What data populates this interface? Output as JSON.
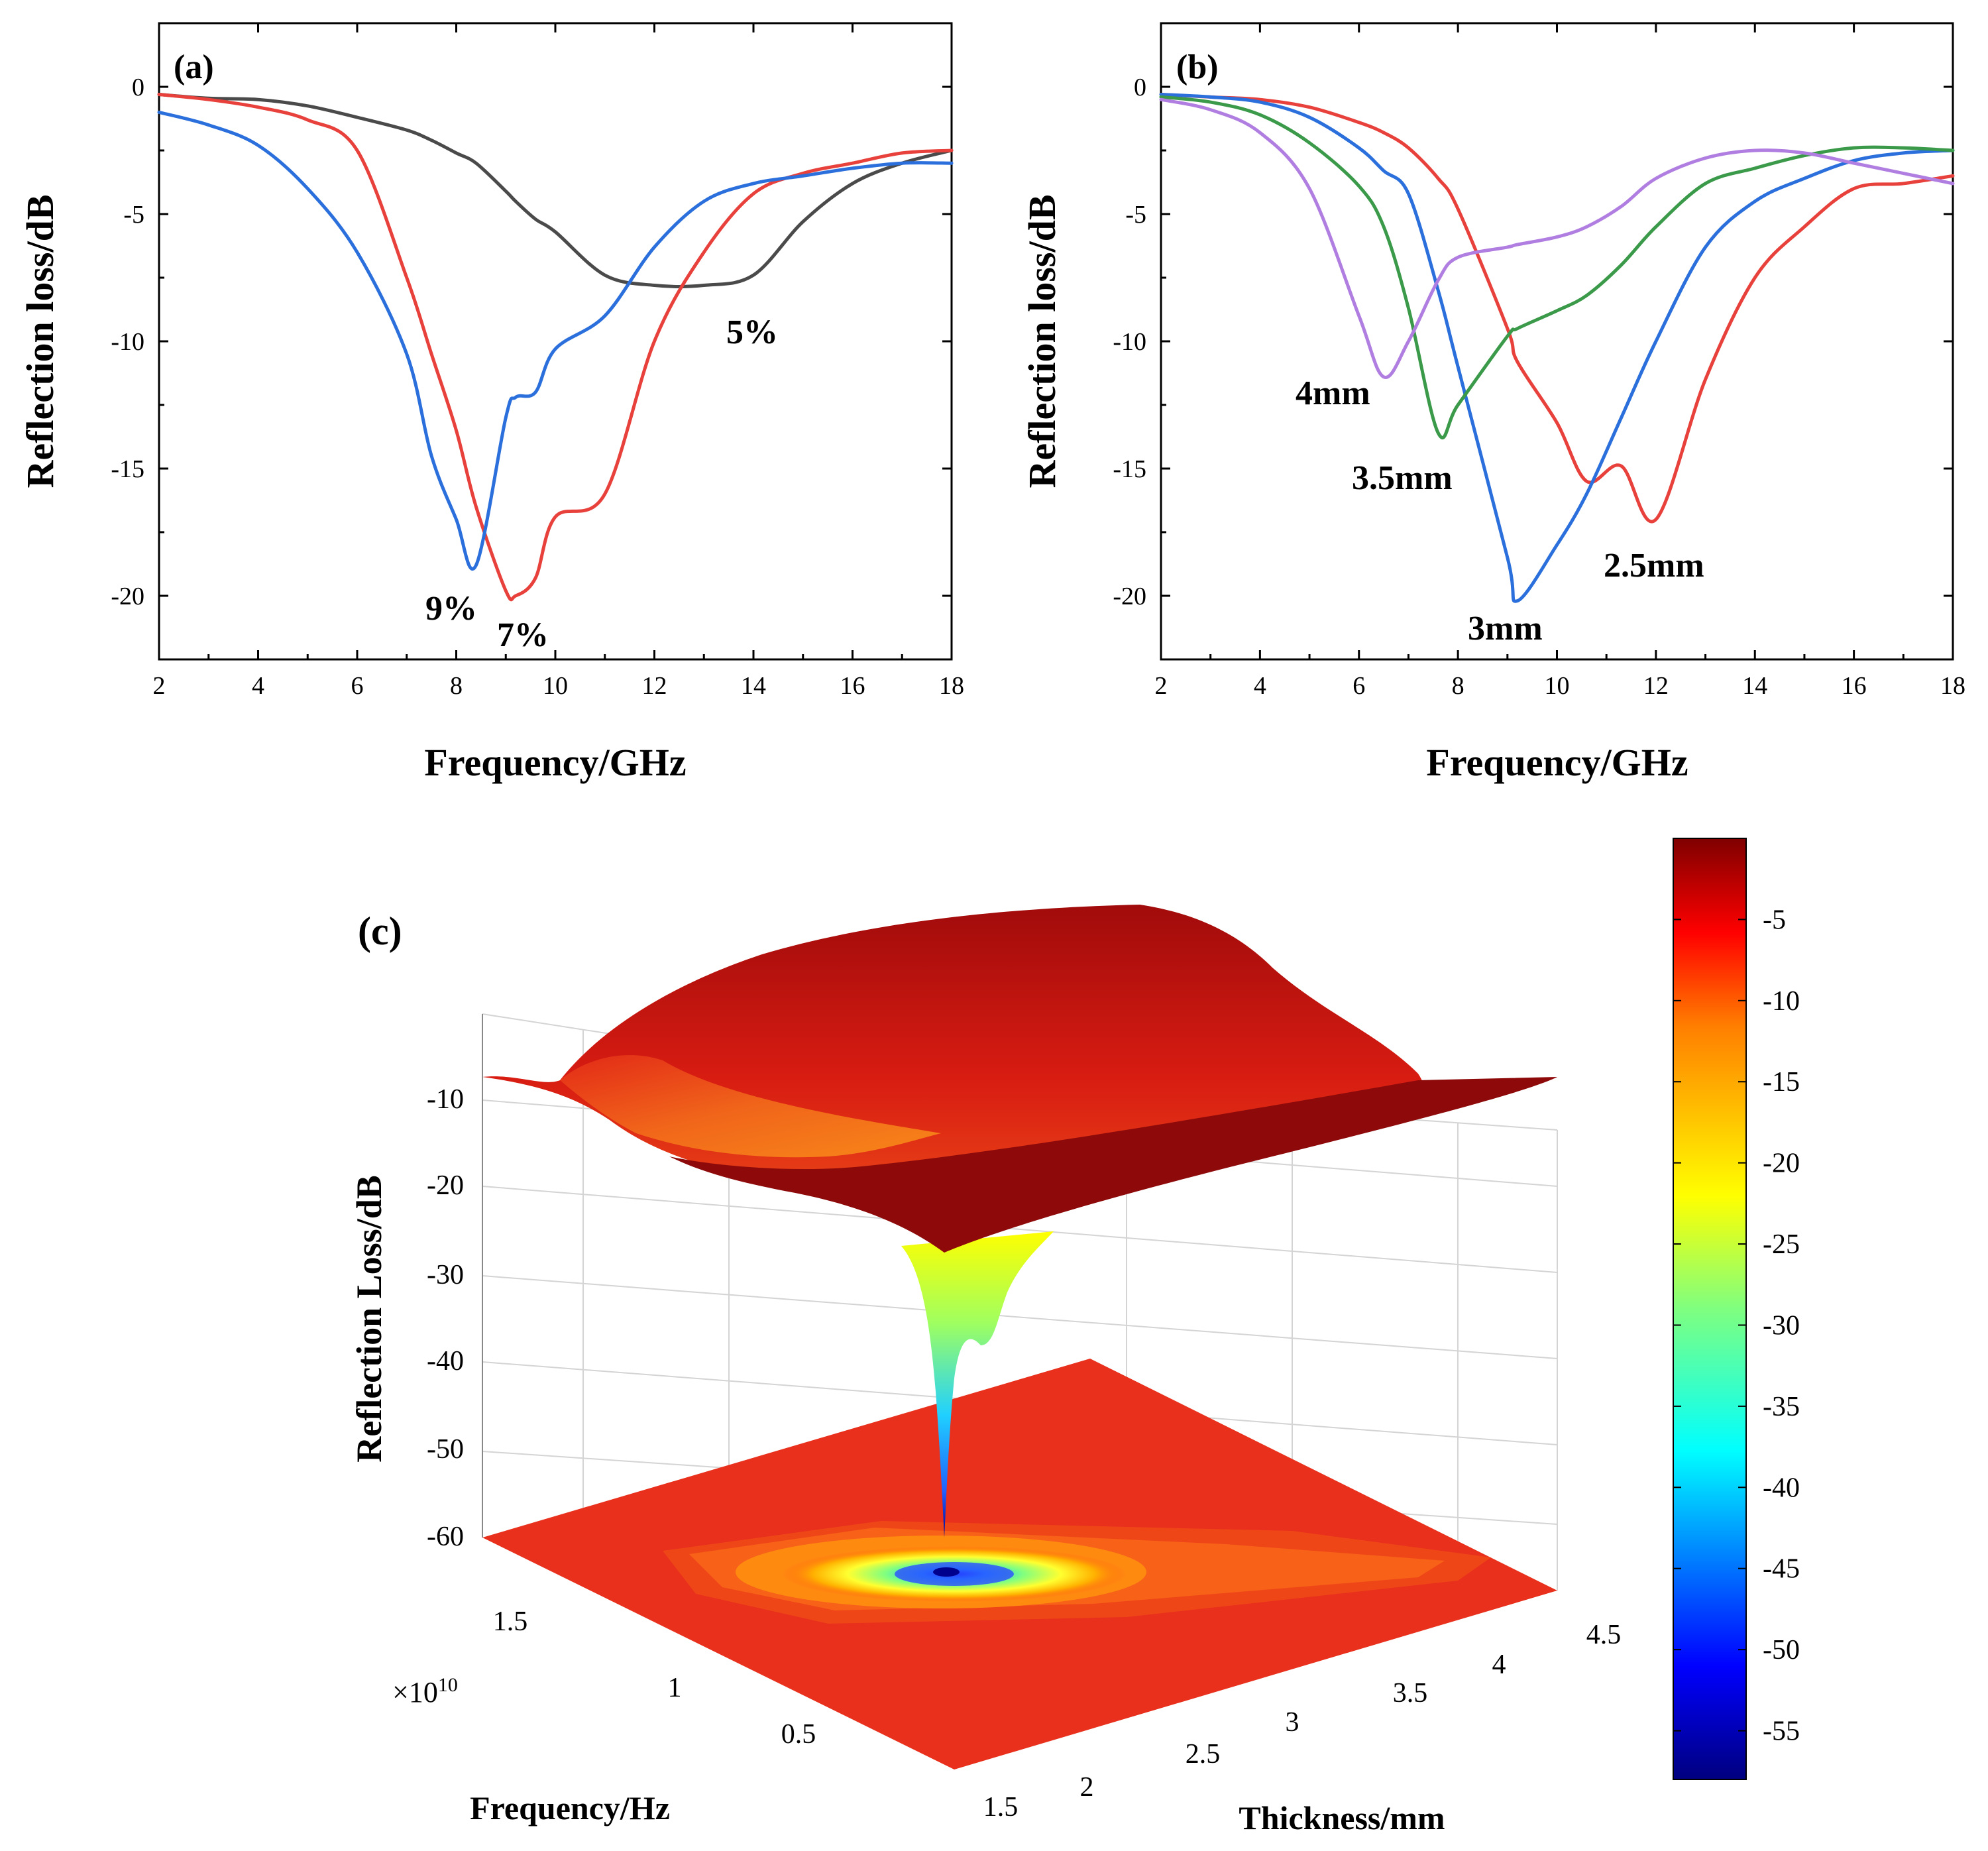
{
  "colors": {
    "gray": "#4a4a4a",
    "red": "#e8413c",
    "blue": "#2a6fdb",
    "green": "#3a9a4a",
    "purple": "#b07ee0"
  },
  "chart_data": [
    {
      "panel": "(a)",
      "type": "line",
      "xlabel": "Frequency/GHz",
      "ylabel": "Reflection loss/dB",
      "xlim": [
        2,
        18
      ],
      "ylim": [
        -22.5,
        2.5
      ],
      "xticks": [
        "2",
        "4",
        "6",
        "8",
        "10",
        "12",
        "14",
        "16",
        "18"
      ],
      "yticks": [
        "0",
        "-5",
        "-10",
        "-15",
        "-20"
      ],
      "x": [
        2,
        3,
        4,
        5,
        6,
        7,
        7.5,
        8,
        8.4,
        9,
        9.2,
        9.6,
        10,
        11,
        12,
        13,
        14,
        15,
        16,
        17,
        18
      ],
      "series": [
        {
          "name": "5%",
          "color": "gray",
          "values": [
            -0.3,
            -0.45,
            -0.5,
            -0.75,
            -1.2,
            -1.7,
            -2.1,
            -2.6,
            -3.0,
            -4.1,
            -4.5,
            -5.2,
            -5.7,
            -7.4,
            -7.8,
            -7.8,
            -7.4,
            -5.3,
            -3.8,
            -3.0,
            -2.5
          ]
        },
        {
          "name": "7%",
          "color": "red",
          "values": [
            -0.3,
            -0.5,
            -0.8,
            -1.3,
            -2.5,
            -7.5,
            -10.5,
            -13.5,
            -16.5,
            -19.8,
            -20.0,
            -19.3,
            -16.9,
            -16.0,
            -10.0,
            -6.5,
            -4.2,
            -3.4,
            -3.0,
            -2.6,
            -2.5
          ]
        },
        {
          "name": "9%",
          "color": "blue",
          "values": [
            -1.0,
            -1.5,
            -2.3,
            -4.0,
            -6.5,
            -10.5,
            -14.5,
            -17.0,
            -18.8,
            -13.0,
            -12.2,
            -12.0,
            -10.3,
            -9.0,
            -6.3,
            -4.5,
            -3.8,
            -3.5,
            -3.2,
            -3.0,
            -3.0
          ]
        }
      ],
      "annotations": [
        "5%",
        "7%",
        "9%"
      ]
    },
    {
      "panel": "(b)",
      "type": "line",
      "xlabel": "Frequency/GHz",
      "ylabel": "Reflection loss/dB",
      "xlim": [
        2,
        18
      ],
      "ylim": [
        -22.5,
        2.5
      ],
      "xticks": [
        "2",
        "4",
        "6",
        "8",
        "10",
        "12",
        "14",
        "16",
        "18"
      ],
      "yticks": [
        "0",
        "-5",
        "-10",
        "-15",
        "-20"
      ],
      "x": [
        2,
        3,
        4,
        5,
        6,
        6.5,
        7,
        7.6,
        8,
        9,
        9.2,
        10,
        10.6,
        11.3,
        12,
        13,
        14,
        15,
        16,
        17,
        18
      ],
      "series": [
        {
          "name": "2.5mm",
          "color": "red",
          "values": [
            -0.3,
            -0.4,
            -0.5,
            -0.8,
            -1.4,
            -1.8,
            -2.4,
            -3.6,
            -4.8,
            -9.5,
            -10.8,
            -13.2,
            -15.5,
            -14.9,
            -17.0,
            -11.5,
            -7.5,
            -5.5,
            -4.0,
            -3.8,
            -3.5
          ]
        },
        {
          "name": "3mm",
          "color": "blue",
          "values": [
            -0.3,
            -0.4,
            -0.6,
            -1.2,
            -2.4,
            -3.3,
            -4.2,
            -8.0,
            -11.0,
            -18.5,
            -20.2,
            -18.0,
            -16.0,
            -13.0,
            -10.0,
            -6.3,
            -4.5,
            -3.6,
            -2.9,
            -2.6,
            -2.5
          ]
        },
        {
          "name": "3.5mm",
          "color": "green",
          "values": [
            -0.4,
            -0.6,
            -1.1,
            -2.2,
            -3.9,
            -5.5,
            -8.7,
            -13.6,
            -12.5,
            -9.8,
            -9.5,
            -8.8,
            -8.2,
            -7.0,
            -5.5,
            -3.8,
            -3.2,
            -2.7,
            -2.4,
            -2.4,
            -2.5
          ]
        },
        {
          "name": "4mm",
          "color": "purple",
          "values": [
            -0.5,
            -0.9,
            -1.8,
            -4.0,
            -9.0,
            -11.4,
            -10.0,
            -7.6,
            -6.7,
            -6.3,
            -6.2,
            -5.9,
            -5.5,
            -4.7,
            -3.6,
            -2.8,
            -2.5,
            -2.6,
            -3.0,
            -3.4,
            -3.8
          ]
        }
      ],
      "annotations": [
        "4mm",
        "3.5mm",
        "3mm",
        "2.5mm"
      ]
    },
    {
      "panel": "(c)",
      "type": "surface3d",
      "xlabel": "Thickness/mm",
      "ylabel": "Frequency/Hz",
      "zlabel": "Reflection Loss/dB",
      "exponent": "×10",
      "exponent_power": "10",
      "xticks": [
        "1.5",
        "2",
        "2.5",
        "3",
        "3.5",
        "4",
        "4.5"
      ],
      "yticks": [
        "0.5",
        "1",
        "1.5"
      ],
      "zticks": [
        "-10",
        "-20",
        "-30",
        "-40",
        "-50",
        "-60"
      ],
      "colorbar_ticks": [
        "-5",
        "-10",
        "-15",
        "-20",
        "-25",
        "-30",
        "-35",
        "-40",
        "-45",
        "-50",
        "-55"
      ],
      "min_value": -58
    }
  ]
}
